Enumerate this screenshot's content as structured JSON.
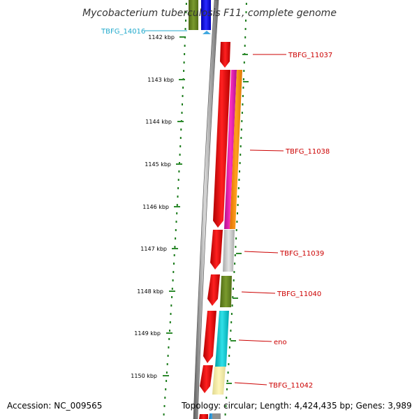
{
  "title": "Mycobacterium tuberculosis F11, complete genome",
  "accession": "Accession: NC_009565",
  "topology": "Topology: circular; Length: 4,424,435 bp; Genes: 3,989",
  "colors": {
    "backbone": "#808080",
    "dots": "#1e7d1e",
    "tick": "#2e8b2e",
    "label_red": "#cc0000",
    "label_cyan": "#22aacc"
  },
  "kbp_ticks": [
    "1142 kbp",
    "1143 kbp",
    "1144 kbp",
    "1145 kbp",
    "1146 kbp",
    "1147 kbp",
    "1148 kbp",
    "1149 kbp",
    "1150 kbp"
  ],
  "genes": [
    {
      "label": "TBFG_14016",
      "color": "#22aacc"
    },
    {
      "label": "TBFG_11037",
      "color": "#cc0000"
    },
    {
      "label": "TBFG_11038",
      "color": "#cc0000"
    },
    {
      "label": "TBFG_11039",
      "color": "#cc0000"
    },
    {
      "label": "TBFG_11040",
      "color": "#cc0000"
    },
    {
      "label": "eno",
      "color": "#cc0000"
    },
    {
      "label": "TBFG_11042",
      "color": "#cc0000"
    }
  ]
}
